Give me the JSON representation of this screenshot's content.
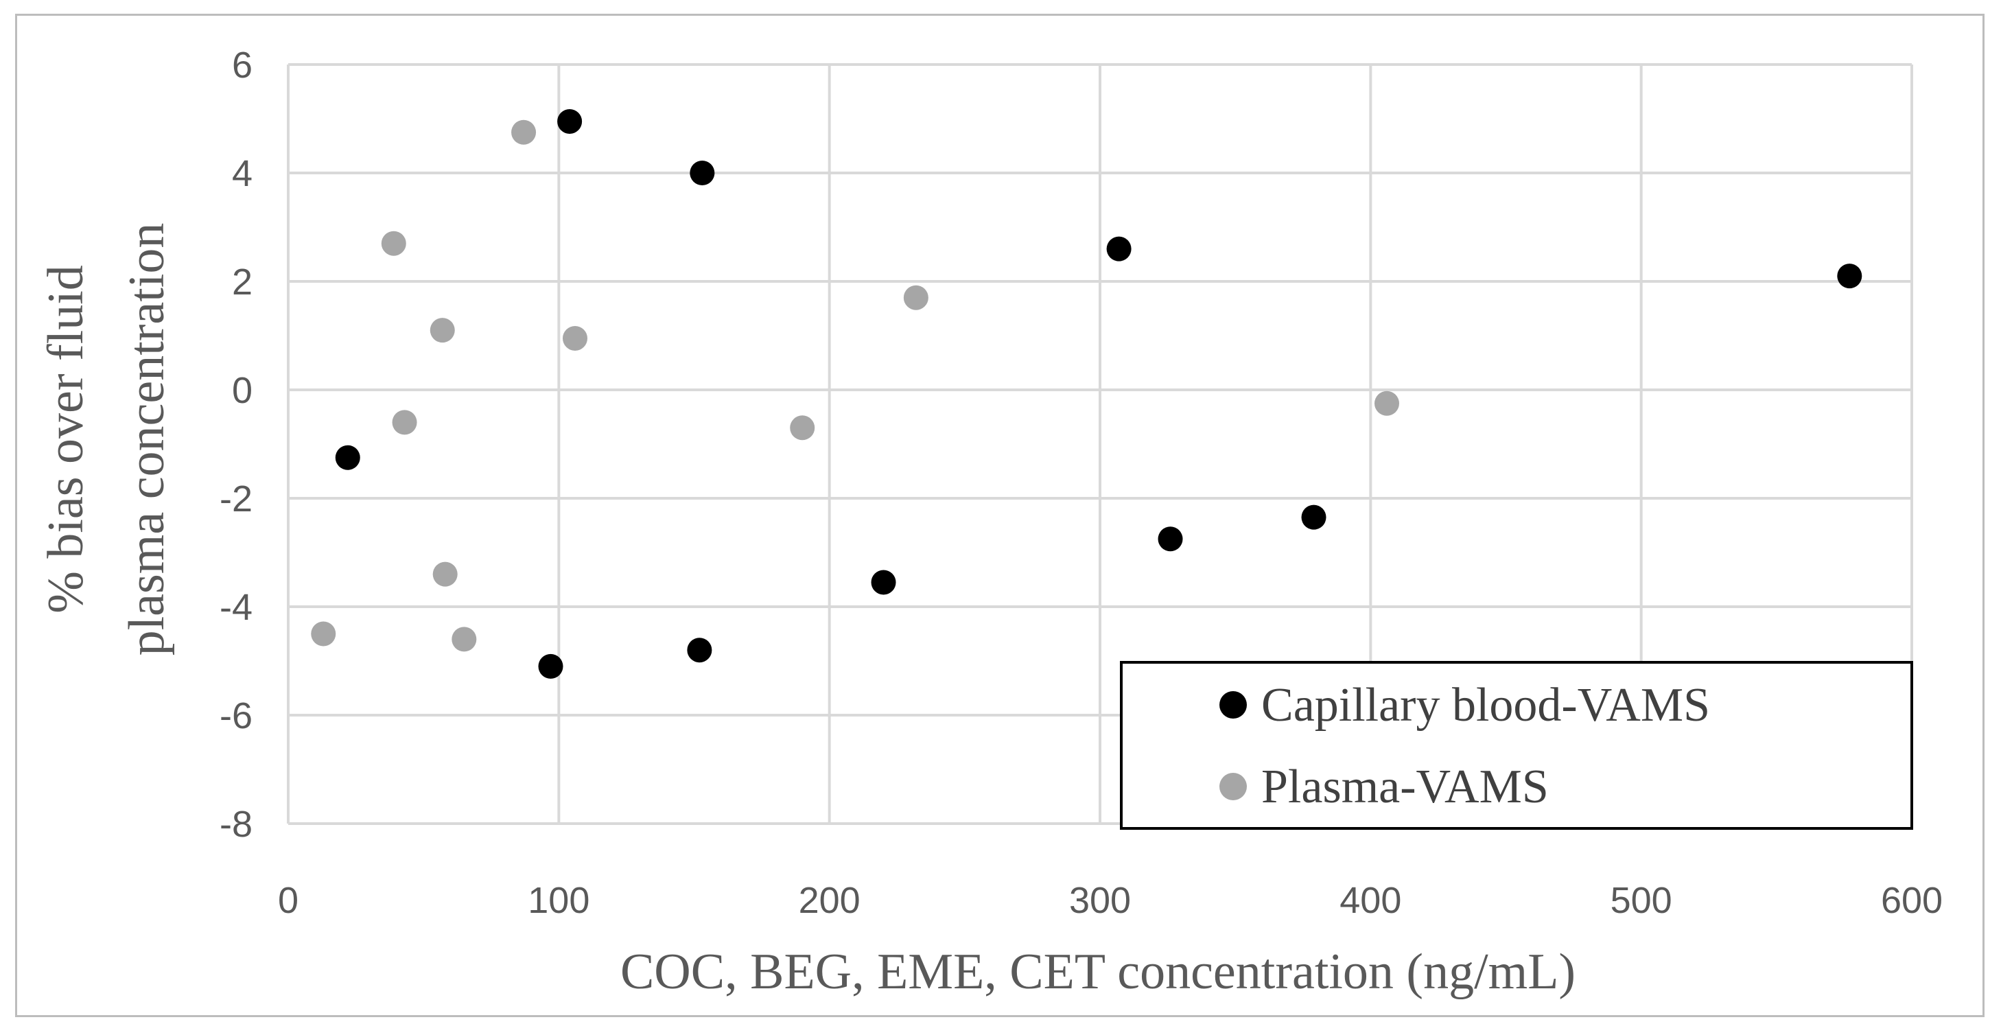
{
  "chart_data": {
    "type": "scatter",
    "title": "",
    "xlabel": "COC, BEG, EME, CET concentration (ng/mL)",
    "ylabel_lines": [
      "% bias over fluid",
      "plasma concentration"
    ],
    "xlim": [
      0,
      600
    ],
    "ylim": [
      -8,
      6
    ],
    "xticks": [
      0,
      100,
      200,
      300,
      400,
      500,
      600
    ],
    "yticks": [
      -8,
      -6,
      -4,
      -2,
      0,
      2,
      4,
      6
    ],
    "grid": true,
    "legend_position": "bottom-right",
    "series": [
      {
        "name": "Capillary blood-VAMS",
        "color": "#000000",
        "points": [
          {
            "x": 22,
            "y": -1.25
          },
          {
            "x": 104,
            "y": 4.95
          },
          {
            "x": 153,
            "y": 4.0
          },
          {
            "x": 97,
            "y": -5.1
          },
          {
            "x": 152,
            "y": -4.8
          },
          {
            "x": 220,
            "y": -3.55
          },
          {
            "x": 307,
            "y": 2.6
          },
          {
            "x": 326,
            "y": -2.75
          },
          {
            "x": 379,
            "y": -2.35
          },
          {
            "x": 577,
            "y": 2.1
          }
        ]
      },
      {
        "name": "Plasma-VAMS",
        "color": "#a6a6a6",
        "points": [
          {
            "x": 13,
            "y": -4.5
          },
          {
            "x": 39,
            "y": 2.7
          },
          {
            "x": 43,
            "y": -0.6
          },
          {
            "x": 57,
            "y": 1.1
          },
          {
            "x": 58,
            "y": -3.4
          },
          {
            "x": 65,
            "y": -4.6
          },
          {
            "x": 87,
            "y": 4.75
          },
          {
            "x": 106,
            "y": 0.95
          },
          {
            "x": 190,
            "y": -0.7
          },
          {
            "x": 232,
            "y": 1.7
          },
          {
            "x": 406,
            "y": -0.25
          }
        ]
      }
    ]
  }
}
